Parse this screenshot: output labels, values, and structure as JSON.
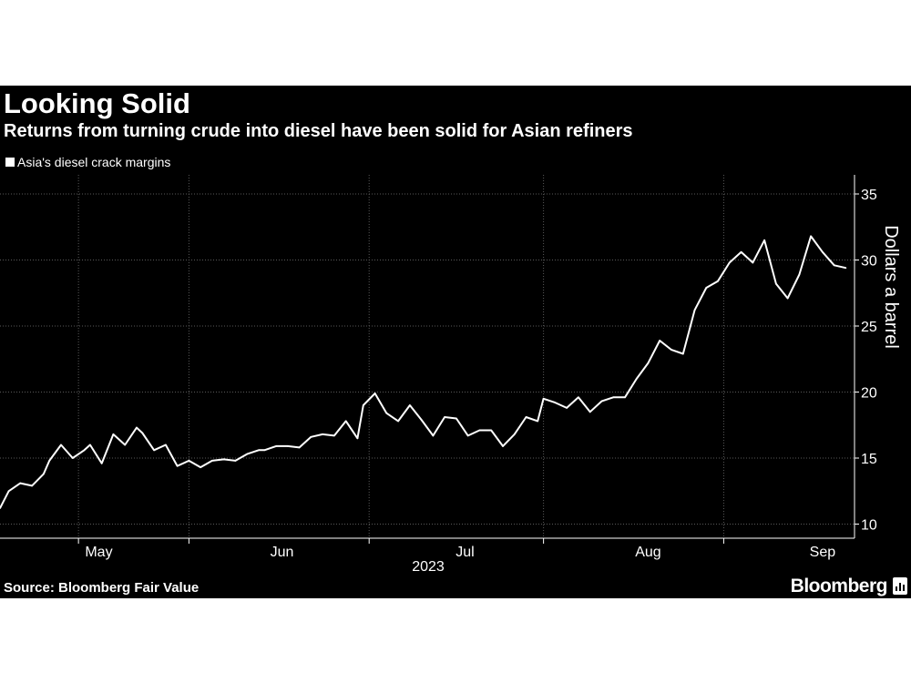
{
  "header": {
    "title": "Looking Solid",
    "subtitle": "Returns from turning crude into diesel have been solid for Asian refiners"
  },
  "footer": {
    "source": "Source: Bloomberg Fair Value",
    "brand": "Bloomberg"
  },
  "colors": {
    "background": "#000000",
    "line": "#ffffff",
    "grid": "#5a5a5a"
  },
  "chart_data": {
    "type": "line",
    "title": "Looking Solid",
    "subtitle": "Returns from turning crude into diesel have been solid for Asian refiners",
    "ylabel": "Dollars a barrel",
    "xlabel": "2023",
    "ylim": [
      10,
      36
    ],
    "yticks": [
      10,
      15,
      20,
      25,
      30,
      35
    ],
    "y_axis_position": "right",
    "grid": "dotted",
    "legend_placement": "top-left",
    "month_labels": [
      "May",
      "Jun",
      "Jul",
      "Aug",
      "Sep"
    ],
    "month_label_x": [
      3.5,
      35,
      66.5,
      98,
      128
    ],
    "month_boundaries": [
      0,
      19,
      50,
      80,
      111
    ],
    "xlim": [
      -13.5,
      133.5
    ],
    "series": [
      {
        "name": "Asia's diesel crack margins",
        "x": [
          -13.5,
          -12,
          -10,
          -8,
          -6,
          -5,
          -3,
          -1,
          1,
          2,
          4,
          6,
          8,
          10,
          11,
          13,
          15,
          17,
          19,
          21,
          23,
          25,
          27,
          29,
          31,
          32,
          34,
          36,
          38,
          40,
          42,
          44,
          46,
          48,
          49,
          51,
          53,
          55,
          57,
          59,
          61,
          63,
          65,
          67,
          69,
          71,
          73,
          75,
          77,
          79,
          80,
          82,
          84,
          86,
          88,
          90,
          92,
          94,
          96,
          98,
          100,
          102,
          104,
          106,
          108,
          110,
          112,
          114,
          116,
          118,
          120,
          122,
          124,
          126,
          128,
          130,
          132
        ],
        "values": [
          11.2,
          12.5,
          13.1,
          12.9,
          13.8,
          14.8,
          16.0,
          15.0,
          15.6,
          16.0,
          14.6,
          16.8,
          16.0,
          17.3,
          16.9,
          15.6,
          16.0,
          14.4,
          14.8,
          14.3,
          14.8,
          14.9,
          14.8,
          15.3,
          15.6,
          15.6,
          15.9,
          15.9,
          15.8,
          16.6,
          16.8,
          16.7,
          17.8,
          16.5,
          19.0,
          19.9,
          18.4,
          17.8,
          19.0,
          17.9,
          16.7,
          18.1,
          18.0,
          16.7,
          17.1,
          17.1,
          15.9,
          16.8,
          18.1,
          17.8,
          19.5,
          19.2,
          18.8,
          19.6,
          18.5,
          19.3,
          19.6,
          19.6,
          21.0,
          22.2,
          23.9,
          23.2,
          22.9,
          26.2,
          27.9,
          28.4,
          29.8,
          30.6,
          29.8,
          31.5,
          28.2,
          27.1,
          28.9,
          31.8,
          30.6,
          29.6,
          29.4
        ]
      }
    ]
  }
}
